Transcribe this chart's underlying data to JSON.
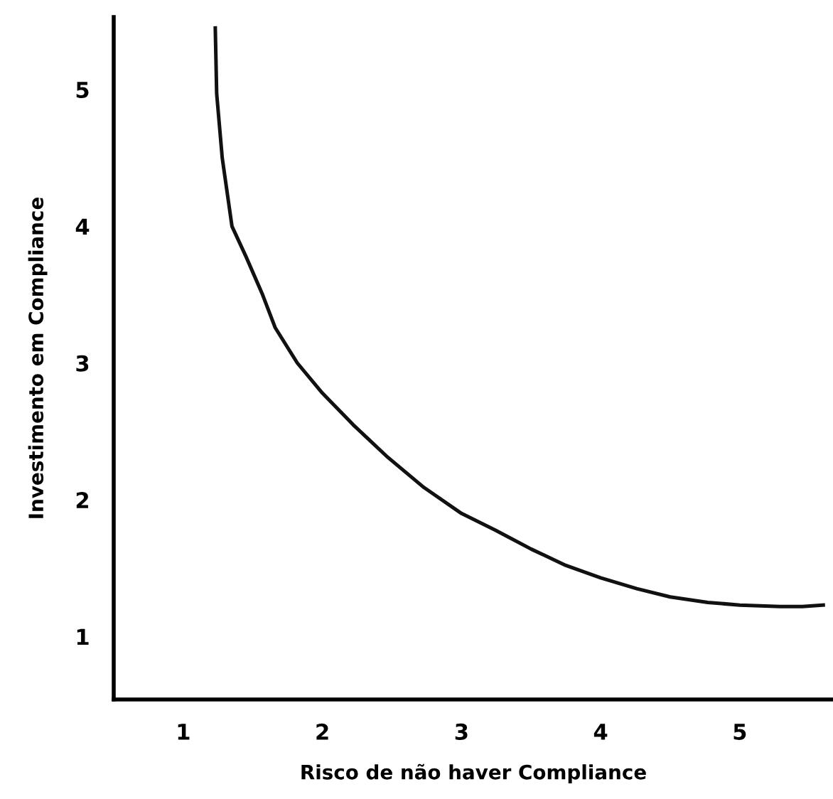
{
  "chart_data": {
    "type": "line",
    "xlabel": "Risco de não haver Compliance",
    "ylabel": "Investimento em Compliance",
    "x": [
      1.23,
      1.24,
      1.28,
      1.35,
      1.45,
      1.57,
      1.66,
      1.82,
      2.0,
      2.22,
      2.46,
      2.73,
      3.0,
      3.24,
      3.5,
      3.75,
      4.0,
      4.26,
      4.5,
      4.77,
      5.0,
      5.29,
      5.45,
      5.6
    ],
    "series": [
      {
        "color": "#111111",
        "values": [
          5.45,
          4.97,
          4.5,
          4.0,
          3.78,
          3.5,
          3.26,
          3.0,
          2.78,
          2.55,
          2.32,
          2.09,
          1.9,
          1.78,
          1.64,
          1.52,
          1.43,
          1.35,
          1.29,
          1.25,
          1.23,
          1.22,
          1.22,
          1.23
        ]
      }
    ],
    "xlim": [
      0.5,
      5.67
    ],
    "ylim": [
      0.54,
      5.53
    ],
    "xticks": [
      1,
      2,
      3,
      4,
      5
    ],
    "yticks": [
      1,
      2,
      3,
      4,
      5
    ],
    "grid": false,
    "marker": "none",
    "line_style": "solid"
  }
}
